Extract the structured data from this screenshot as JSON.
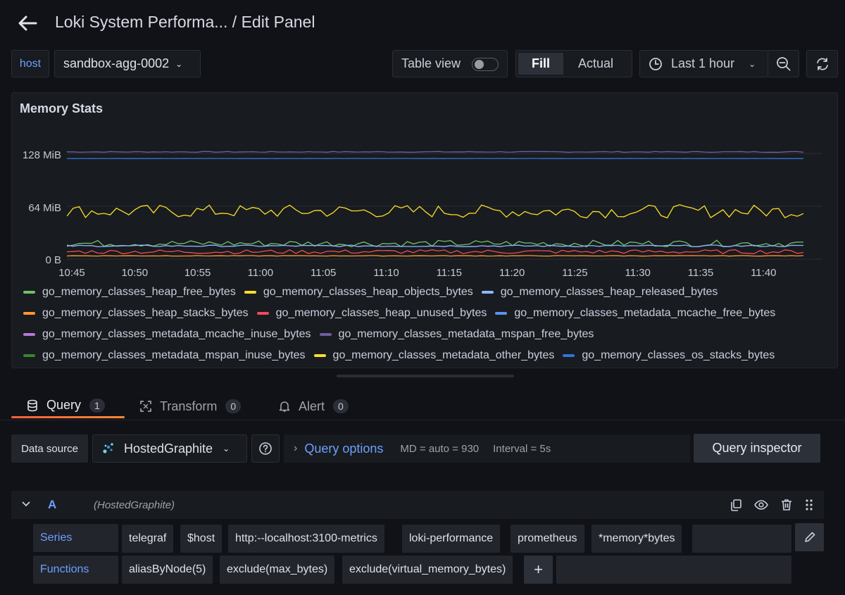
{
  "header": {
    "title": "Loki System Performa...",
    "separator_title": " / Edit Panel"
  },
  "toolbar": {
    "host_label": "host",
    "host_value": "sandbox-agg-0002",
    "table_view_label": "Table view",
    "table_view_enabled": false,
    "fill_label": "Fill",
    "actual_label": "Actual",
    "time_range": "Last 1 hour"
  },
  "panel": {
    "title": "Memory Stats",
    "legend": [
      {
        "name": "go_memory_classes_heap_free_bytes",
        "color": "#73bf69"
      },
      {
        "name": "go_memory_classes_heap_objects_bytes",
        "color": "#fade2a"
      },
      {
        "name": "go_memory_classes_heap_released_bytes",
        "color": "#8ab8ff"
      },
      {
        "name": "go_memory_classes_heap_stacks_bytes",
        "color": "#ff9830"
      },
      {
        "name": "go_memory_classes_heap_unused_bytes",
        "color": "#f2495c"
      },
      {
        "name": "go_memory_classes_metadata_mcache_free_bytes",
        "color": "#5794f2"
      },
      {
        "name": "go_memory_classes_metadata_mcache_inuse_bytes",
        "color": "#b877d9"
      },
      {
        "name": "go_memory_classes_metadata_mspan_free_bytes",
        "color": "#705da0"
      },
      {
        "name": "go_memory_classes_metadata_mspan_inuse_bytes",
        "color": "#37872d"
      },
      {
        "name": "go_memory_classes_metadata_other_bytes",
        "color": "#fade2a"
      },
      {
        "name": "go_memory_classes_os_stacks_bytes",
        "color": "#3274d9"
      }
    ]
  },
  "chart_data": {
    "type": "line",
    "title": "Memory Stats",
    "yticks": [
      "128 MiB",
      "64 MiB",
      "0 B"
    ],
    "ylim_mib": [
      0,
      140
    ],
    "xticks": [
      "10:45",
      "10:50",
      "10:55",
      "11:00",
      "11:05",
      "11:10",
      "11:15",
      "11:20",
      "11:25",
      "11:30",
      "11:35",
      "11:40"
    ],
    "series": [
      {
        "name": "go_memory_classes_metadata_mspan_free_bytes",
        "color": "#705da0",
        "approx_level_mib": 130,
        "noise_mib": 0.5
      },
      {
        "name": "go_memory_classes_os_stacks_bytes",
        "color": "#3274d9",
        "approx_level_mib": 122,
        "noise_mib": 0.1
      },
      {
        "name": "go_memory_classes_heap_objects_bytes",
        "color": "#fade2a",
        "approx_level_mib": 58,
        "noise_mib": 8
      },
      {
        "name": "go_memory_classes_heap_free_bytes",
        "color": "#73bf69",
        "approx_level_mib": 19,
        "noise_mib": 4
      },
      {
        "name": "go_memory_classes_heap_released_bytes",
        "color": "#8ab8ff",
        "approx_level_mib": 16,
        "noise_mib": 1
      },
      {
        "name": "go_memory_classes_heap_unused_bytes",
        "color": "#f2495c",
        "approx_level_mib": 9,
        "noise_mib": 2.5
      },
      {
        "name": "go_memory_classes_heap_stacks_bytes",
        "color": "#ff9830",
        "approx_level_mib": 4,
        "noise_mib": 0.3
      }
    ]
  },
  "tabs": [
    {
      "label": "Query",
      "count": "1"
    },
    {
      "label": "Transform",
      "count": "0"
    },
    {
      "label": "Alert",
      "count": "0"
    }
  ],
  "query_editor": {
    "data_source_label": "Data source",
    "data_source_value": "HostedGraphite",
    "query_options_label": "Query options",
    "md_text": "MD = auto = 930",
    "interval_text": "Interval = 5s",
    "query_inspector_label": "Query inspector",
    "row_letter": "A",
    "row_datasource": "(HostedGraphite)",
    "series_label": "Series",
    "series_segments": [
      "telegraf",
      "$host",
      "http:--localhost:3100-metrics",
      "loki-performance",
      "prometheus",
      "*memory*bytes"
    ],
    "functions_label": "Functions",
    "function_segments": [
      "aliasByNode(5)",
      "exclude(max_bytes)",
      "exclude(virtual_memory_bytes)"
    ],
    "add_function_label": "+"
  }
}
